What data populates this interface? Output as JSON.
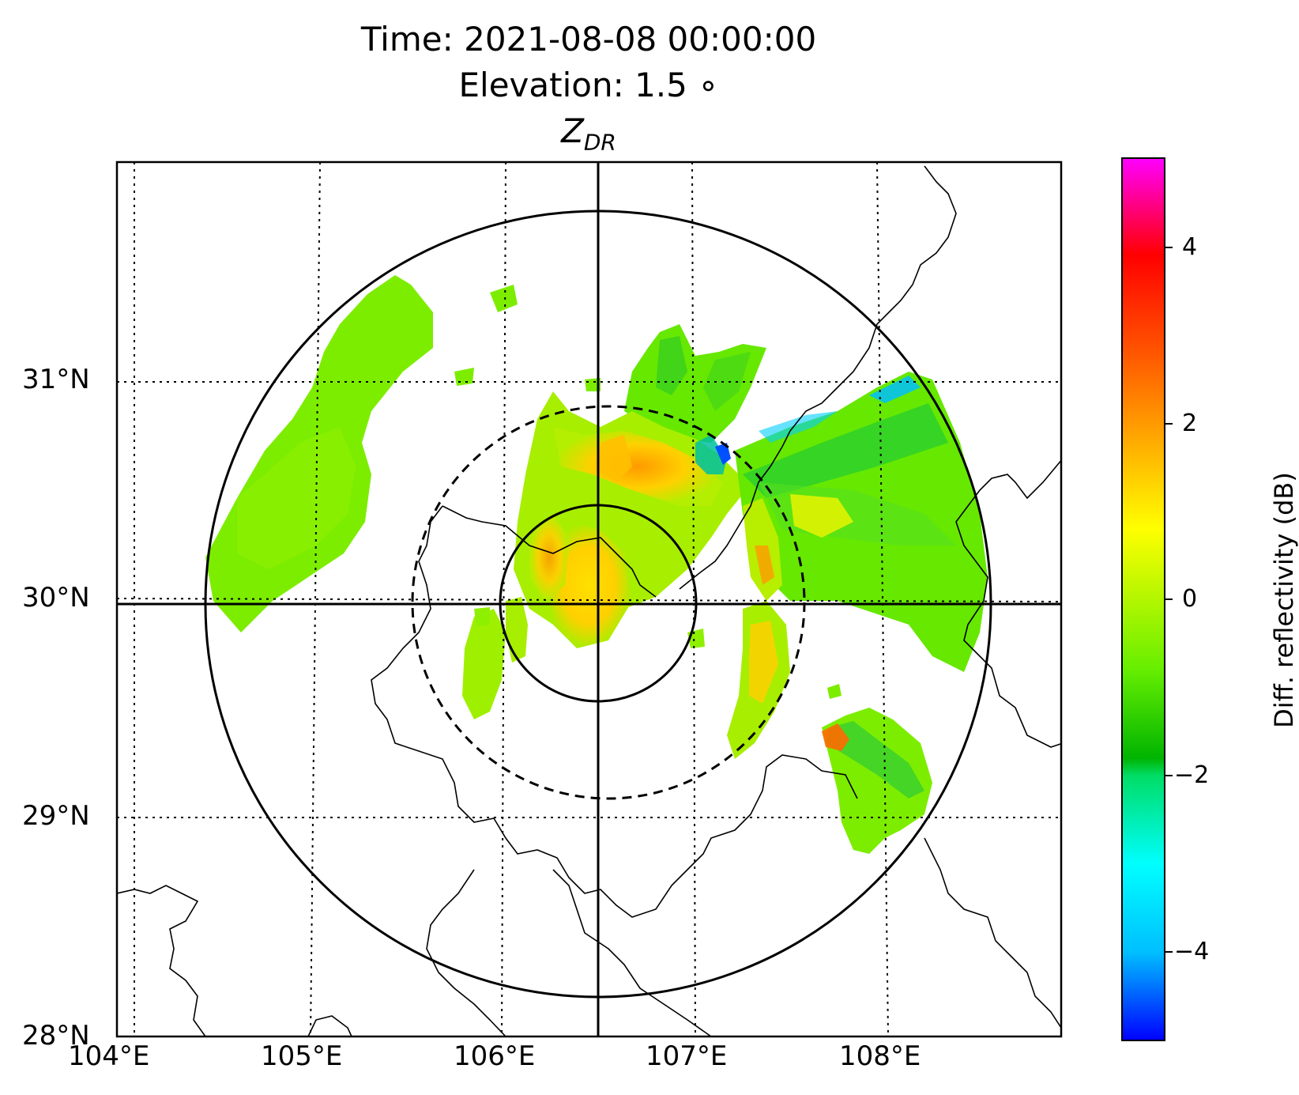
{
  "title": {
    "line1": "Time: 2021-08-08 00:00:00",
    "line2": "Elevation: 1.5 ∘",
    "variable_main": "Z",
    "variable_sub": "DR"
  },
  "map": {
    "lon_labels": [
      "104°E",
      "105°E",
      "106°E",
      "107°E",
      "108°E"
    ],
    "lat_labels": [
      "28°N",
      "29°N",
      "30°N",
      "31°N"
    ],
    "radar_site": {
      "lon": 106.5,
      "lat": 29.95
    },
    "range_rings": [
      "solid",
      "dashed",
      "solid"
    ]
  },
  "colorbar": {
    "label": "Diff. reflectivity (dB)",
    "ticks": [
      "4",
      "2",
      "0",
      "−2",
      "−4"
    ],
    "range": [
      -5,
      5
    ],
    "colors": [
      "#0000ff",
      "#00bfff",
      "#00ffff",
      "#00dd66",
      "#00b400",
      "#66ee00",
      "#ffff00",
      "#ffaa00",
      "#ff5500",
      "#ff0000",
      "#ff00ff"
    ]
  },
  "chart_data": {
    "type": "heatmap",
    "title": "Time: 2021-08-08 00:00:00 / Elevation: 1.5° / Z_DR",
    "xlabel": "",
    "ylabel": "",
    "xlim": [
      104.0,
      108.9
    ],
    "ylim": [
      28.0,
      32.0
    ],
    "value_label": "Diff. reflectivity (dB)",
    "value_range": [
      -5,
      5
    ],
    "grid": true
  }
}
